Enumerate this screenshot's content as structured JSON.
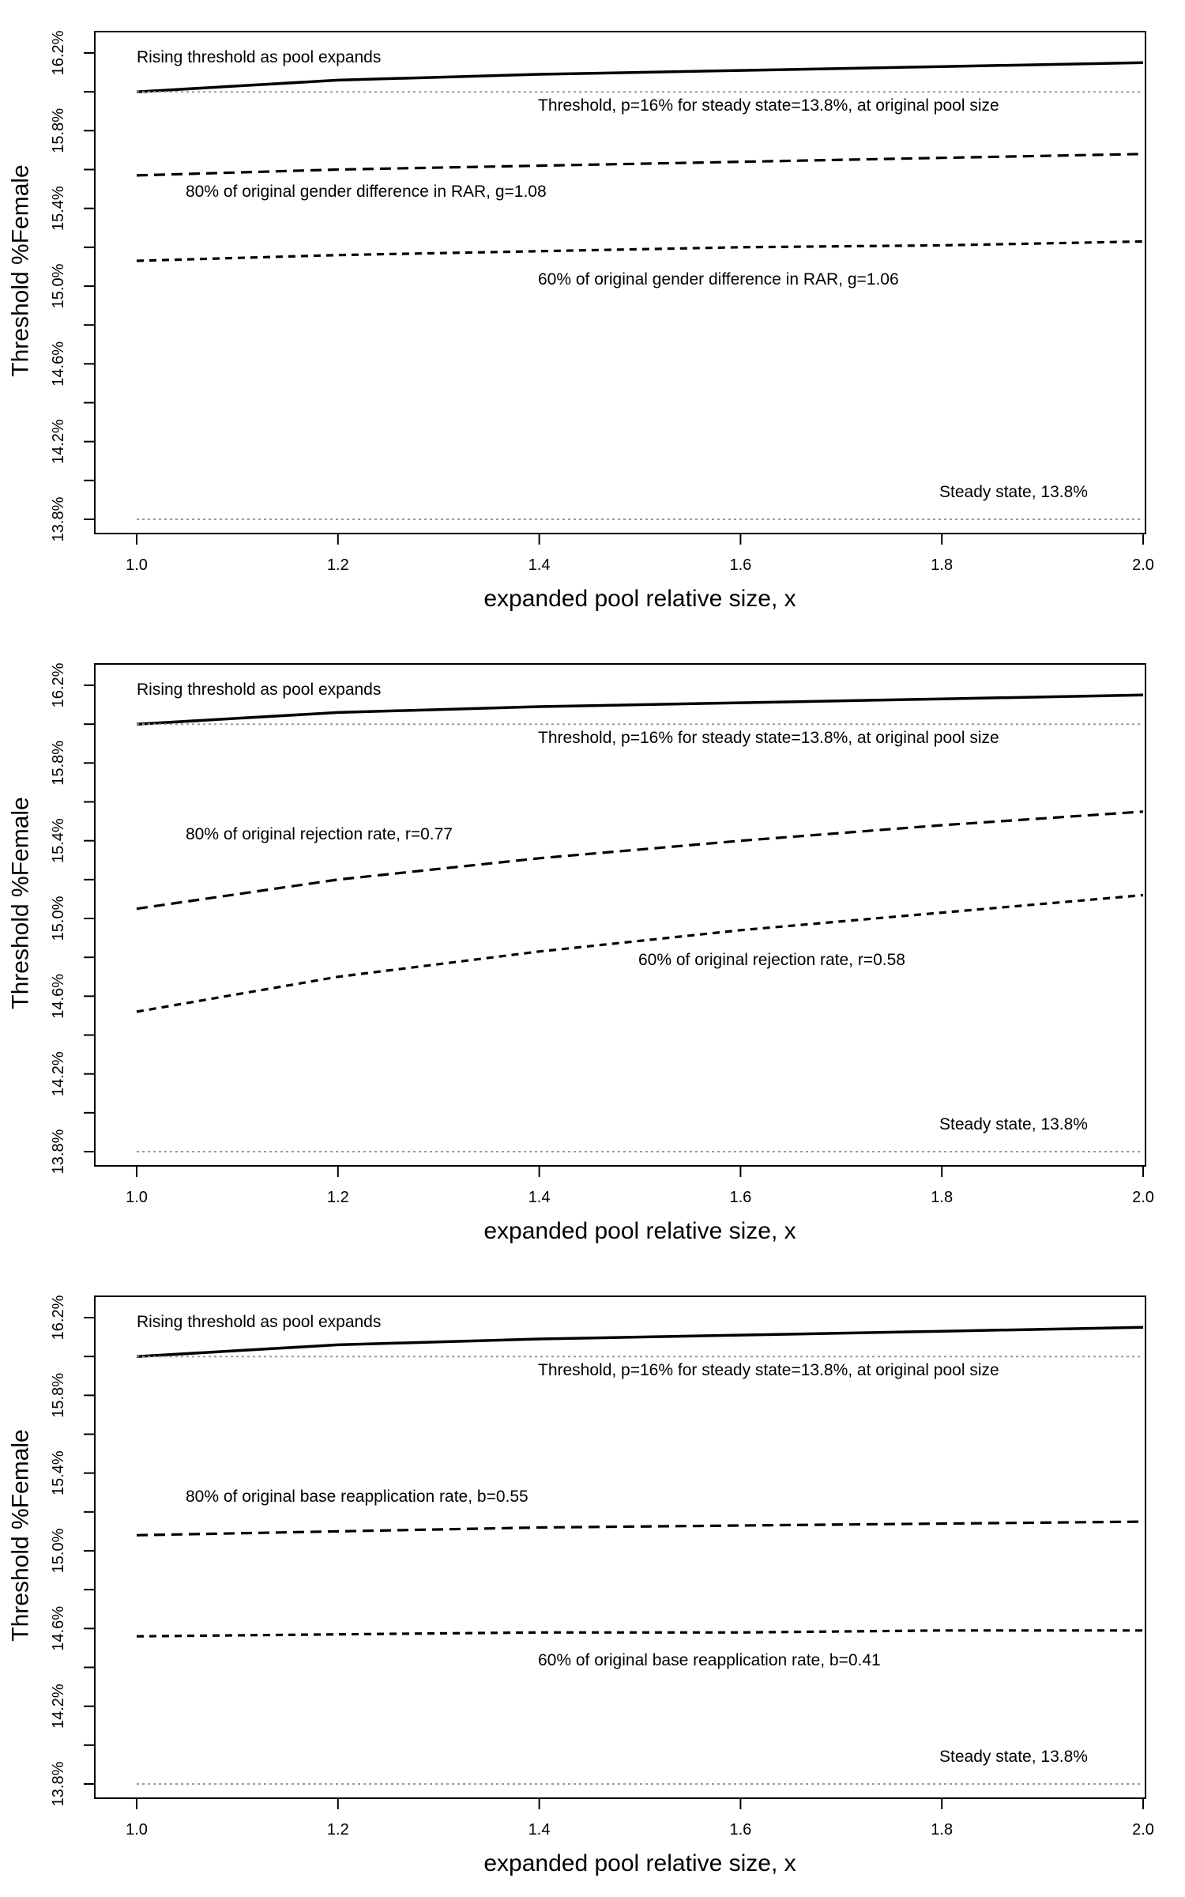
{
  "chart_data": [
    {
      "type": "line",
      "xlabel": "expanded pool relative size, x",
      "ylabel": "Threshold %Female",
      "xlim": [
        1.0,
        2.0
      ],
      "ylim": [
        13.8,
        16.2
      ],
      "xticks": [
        "1.0",
        "1.2",
        "1.4",
        "1.6",
        "1.8",
        "2.0"
      ],
      "yticks": [
        "13.8%",
        "14.2%",
        "14.6%",
        "15.0%",
        "15.4%",
        "15.8%",
        "16.2%"
      ],
      "grid": false,
      "series": [
        {
          "label": "Rising threshold as pool expands",
          "line": "solid",
          "color": "#000000",
          "x": [
            1.0,
            1.1,
            1.2,
            1.4,
            1.6,
            1.8,
            2.0
          ],
          "y": [
            16.0,
            16.03,
            16.06,
            16.09,
            16.11,
            16.13,
            16.15
          ]
        },
        {
          "label": "Threshold, p=16% for steady state=13.8%, at original pool size",
          "line": "dotted",
          "color": "#999999",
          "x": [
            1.0,
            2.0
          ],
          "y": [
            16.0,
            16.0
          ]
        },
        {
          "label": "80% of original gender difference in RAR, g=1.08",
          "line": "longdash",
          "color": "#000000",
          "x": [
            1.0,
            1.2,
            1.4,
            1.6,
            1.8,
            2.0
          ],
          "y": [
            15.57,
            15.6,
            15.62,
            15.64,
            15.66,
            15.68
          ]
        },
        {
          "label": "60% of original gender difference in RAR, g=1.06",
          "line": "dashed",
          "color": "#000000",
          "x": [
            1.0,
            1.2,
            1.4,
            1.6,
            1.8,
            2.0
          ],
          "y": [
            15.13,
            15.16,
            15.18,
            15.2,
            15.21,
            15.23
          ]
        },
        {
          "label": "Steady state, 13.8%",
          "line": "dotted",
          "color": "#999999",
          "x": [
            1.0,
            2.0
          ],
          "y": [
            13.8,
            13.8
          ]
        }
      ]
    },
    {
      "type": "line",
      "xlabel": "expanded pool relative size, x",
      "ylabel": "Threshold %Female",
      "xlim": [
        1.0,
        2.0
      ],
      "ylim": [
        13.8,
        16.2
      ],
      "xticks": [
        "1.0",
        "1.2",
        "1.4",
        "1.6",
        "1.8",
        "2.0"
      ],
      "yticks": [
        "13.8%",
        "14.2%",
        "14.6%",
        "15.0%",
        "15.4%",
        "15.8%",
        "16.2%"
      ],
      "grid": false,
      "series": [
        {
          "label": "Rising threshold as pool expands",
          "line": "solid",
          "color": "#000000",
          "x": [
            1.0,
            1.1,
            1.2,
            1.4,
            1.6,
            1.8,
            2.0
          ],
          "y": [
            16.0,
            16.03,
            16.06,
            16.09,
            16.11,
            16.13,
            16.15
          ]
        },
        {
          "label": "Threshold, p=16% for steady state=13.8%, at original pool size",
          "line": "dotted",
          "color": "#999999",
          "x": [
            1.0,
            2.0
          ],
          "y": [
            16.0,
            16.0
          ]
        },
        {
          "label": "80% of original rejection rate, r=0.77",
          "line": "longdash",
          "color": "#000000",
          "x": [
            1.0,
            1.2,
            1.4,
            1.6,
            1.8,
            2.0
          ],
          "y": [
            15.05,
            15.2,
            15.31,
            15.4,
            15.48,
            15.55
          ]
        },
        {
          "label": "60% of original rejection rate, r=0.58",
          "line": "dashed",
          "color": "#000000",
          "x": [
            1.0,
            1.2,
            1.4,
            1.6,
            1.8,
            2.0
          ],
          "y": [
            14.52,
            14.7,
            14.83,
            14.94,
            15.03,
            15.12
          ]
        },
        {
          "label": "Steady state, 13.8%",
          "line": "dotted",
          "color": "#999999",
          "x": [
            1.0,
            2.0
          ],
          "y": [
            13.8,
            13.8
          ]
        }
      ]
    },
    {
      "type": "line",
      "xlabel": "expanded pool relative size, x",
      "ylabel": "Threshold %Female",
      "xlim": [
        1.0,
        2.0
      ],
      "ylim": [
        13.8,
        16.2
      ],
      "xticks": [
        "1.0",
        "1.2",
        "1.4",
        "1.6",
        "1.8",
        "2.0"
      ],
      "yticks": [
        "13.8%",
        "14.2%",
        "14.6%",
        "15.0%",
        "15.4%",
        "15.8%",
        "16.2%"
      ],
      "grid": false,
      "series": [
        {
          "label": "Rising threshold as pool expands",
          "line": "solid",
          "color": "#000000",
          "x": [
            1.0,
            1.1,
            1.2,
            1.4,
            1.6,
            1.8,
            2.0
          ],
          "y": [
            16.0,
            16.03,
            16.06,
            16.09,
            16.11,
            16.13,
            16.15
          ]
        },
        {
          "label": "Threshold, p=16% for steady state=13.8%, at original pool size",
          "line": "dotted",
          "color": "#999999",
          "x": [
            1.0,
            2.0
          ],
          "y": [
            16.0,
            16.0
          ]
        },
        {
          "label": "80% of original base reapplication rate, b=0.55",
          "line": "longdash",
          "color": "#000000",
          "x": [
            1.0,
            1.2,
            1.4,
            1.6,
            1.8,
            2.0
          ],
          "y": [
            15.08,
            15.1,
            15.12,
            15.13,
            15.14,
            15.15
          ]
        },
        {
          "label": "60% of original base reapplication rate, b=0.41",
          "line": "dashed",
          "color": "#000000",
          "x": [
            1.0,
            1.2,
            1.4,
            1.6,
            1.8,
            2.0
          ],
          "y": [
            14.56,
            14.57,
            14.58,
            14.58,
            14.59,
            14.59
          ]
        },
        {
          "label": "Steady state, 13.8%",
          "line": "dotted",
          "color": "#999999",
          "x": [
            1.0,
            2.0
          ],
          "y": [
            13.8,
            13.8
          ]
        }
      ]
    }
  ]
}
